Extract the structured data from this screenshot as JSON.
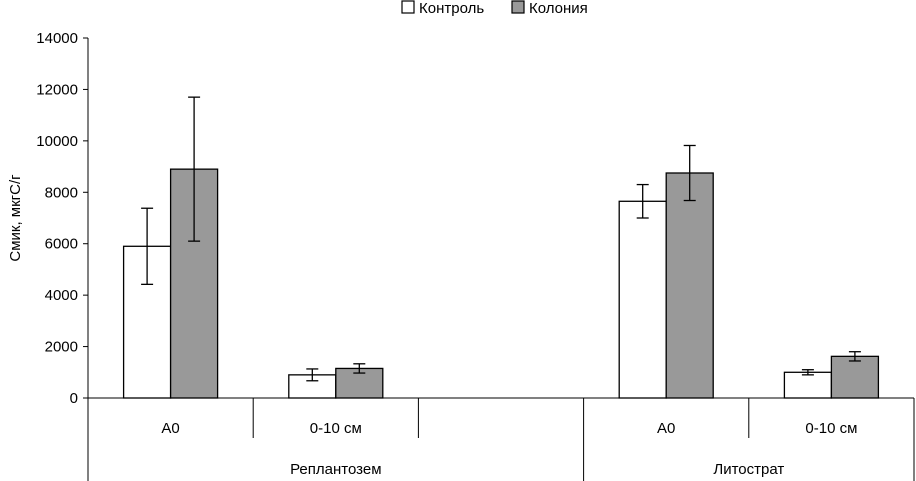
{
  "chart_data": {
    "type": "bar",
    "ylabel": "Смик, мкгС/г",
    "ylim": [
      0,
      14000
    ],
    "yticks": [
      0,
      2000,
      4000,
      6000,
      8000,
      10000,
      12000,
      14000
    ],
    "legend_position": "top-center",
    "groups": [
      {
        "label": "Реплантозем",
        "categories": [
          "A0",
          "0-10 см",
          ""
        ]
      },
      {
        "label": "Литострат",
        "categories": [
          "A0",
          "0-10 см"
        ]
      }
    ],
    "categories": [
      "A0",
      "0-10 см",
      "",
      "A0",
      "0-10 см"
    ],
    "series": [
      {
        "name": "Контроль",
        "color": "#ffffff",
        "values": [
          5900,
          900,
          null,
          7650,
          1000
        ],
        "errors": [
          1480,
          230,
          null,
          650,
          100
        ]
      },
      {
        "name": "Колония",
        "color": "#999999",
        "values": [
          8900,
          1150,
          null,
          8750,
          1620
        ],
        "errors": [
          2800,
          180,
          null,
          1070,
          180
        ]
      }
    ]
  }
}
